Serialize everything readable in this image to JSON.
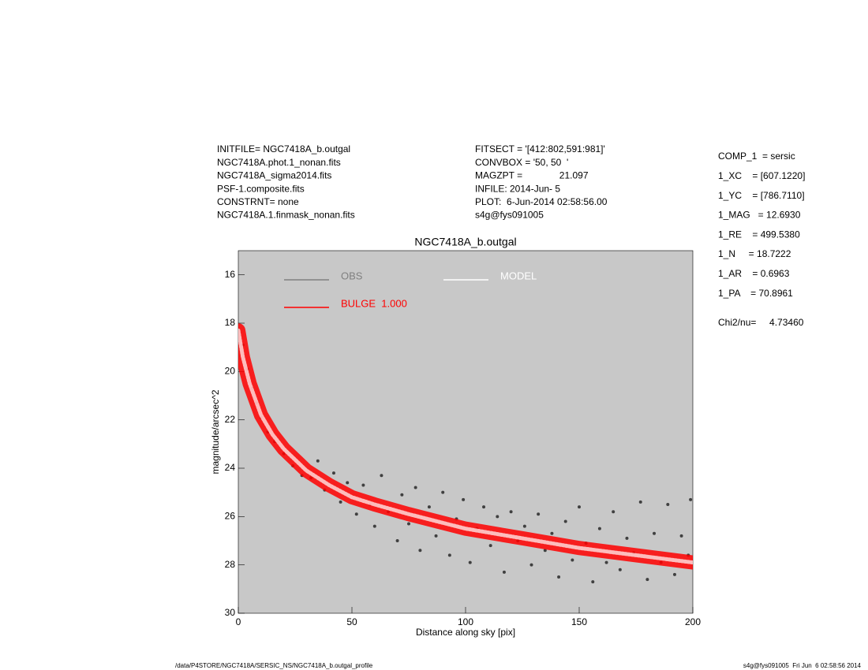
{
  "header": {
    "left": [
      "INITFILE= NGC7418A_b.outgal",
      "NGC7418A.phot.1_nonan.fits",
      "NGC7418A_sigma2014.fits",
      "PSF-1.composite.fits",
      "CONSTRNT= none",
      "NGC7418A.1.finmask_nonan.fits"
    ],
    "middle": [
      "FITSECT = '[412:802,591:981]'",
      "CONVBOX = '50, 50  '",
      "MAGZPT =              21.097",
      "INFILE: 2014-Jun- 5",
      "PLOT:  6-Jun-2014 02:58:56.00",
      "s4g@fys091005"
    ]
  },
  "parameters": [
    "COMP_1  = sersic",
    "1_XC    = [607.1220]",
    "1_YC    = [786.7110]",
    "1_MAG   = 12.6930",
    "1_RE    = 499.5380",
    "1_N     = 18.7222",
    "1_AR    = 0.6963",
    "1_PA    = 70.8961"
  ],
  "chi2": "Chi2/nu=     4.73460",
  "footer": {
    "left": "/data/P4STORE/NGC7418A/SERSIC_NS/NGC7418A_b.outgal_profile",
    "right": "s4g@fys091005  Fri Jun  6 02:58:56 2014"
  },
  "chart_data": {
    "type": "scatter",
    "title": "NGC7418A_b.outgal",
    "x_label": "Distance along sky [pix]",
    "y_label": "magnitude/arcsec^2",
    "xlim": [
      0,
      200
    ],
    "xticks": [
      0,
      50,
      100,
      150,
      200
    ],
    "ylim": [
      15,
      30
    ],
    "y_inverted": true,
    "yticks": [
      16,
      18,
      20,
      22,
      24,
      26,
      28,
      30
    ],
    "background": "#c8c8c8",
    "series": [
      {
        "name": "OBS",
        "color": "#404040",
        "style": "points",
        "x": [
          2,
          4,
          6,
          8,
          10,
          13,
          16,
          20,
          24,
          28,
          32,
          35,
          38,
          42,
          45,
          48,
          52,
          55,
          58,
          60,
          63,
          66,
          70,
          72,
          75,
          78,
          80,
          84,
          87,
          90,
          93,
          96,
          99,
          102,
          105,
          108,
          111,
          114,
          117,
          120,
          123,
          126,
          129,
          132,
          135,
          138,
          141,
          144,
          147,
          150,
          153,
          156,
          159,
          162,
          165,
          168,
          171,
          174,
          177,
          180,
          183,
          186,
          189,
          192,
          195,
          198,
          199
        ],
        "values": [
          18.9,
          19.9,
          20.7,
          21.3,
          21.9,
          22.5,
          22.9,
          23.4,
          23.9,
          24.3,
          24.4,
          23.7,
          24.9,
          24.2,
          25.4,
          24.6,
          25.9,
          24.7,
          25.5,
          26.4,
          24.3,
          25.8,
          27.0,
          25.1,
          26.3,
          24.8,
          27.4,
          25.6,
          26.8,
          25.0,
          27.6,
          26.1,
          25.3,
          27.9,
          26.5,
          25.6,
          27.2,
          26.0,
          28.3,
          25.8,
          27.0,
          26.4,
          28.0,
          25.9,
          27.4,
          26.7,
          28.5,
          26.2,
          27.8,
          25.6,
          27.1,
          28.7,
          26.5,
          27.9,
          25.8,
          28.2,
          26.9,
          27.5,
          25.4,
          28.6,
          26.7,
          27.9,
          25.5,
          28.4,
          26.8,
          27.6,
          25.3
        ]
      },
      {
        "name": "MODEL",
        "color": "#ffffff",
        "style": "line",
        "x": [
          0,
          2,
          5,
          10,
          15,
          20,
          30,
          40,
          50,
          60,
          75,
          100,
          125,
          150,
          175,
          200
        ],
        "values": [
          18.3,
          19.4,
          20.5,
          21.8,
          22.6,
          23.2,
          24.1,
          24.7,
          25.2,
          25.5,
          25.9,
          26.5,
          26.9,
          27.3,
          27.6,
          27.9
        ]
      },
      {
        "name": "BULGE  1.000",
        "color": "#ff0000",
        "style": "band",
        "x": [
          0,
          2,
          5,
          10,
          15,
          20,
          30,
          40,
          50,
          60,
          75,
          100,
          125,
          150,
          175,
          200
        ],
        "values": [
          18.3,
          19.4,
          20.5,
          21.8,
          22.6,
          23.2,
          24.1,
          24.7,
          25.2,
          25.5,
          25.9,
          26.5,
          26.9,
          27.3,
          27.6,
          27.9
        ]
      }
    ]
  }
}
